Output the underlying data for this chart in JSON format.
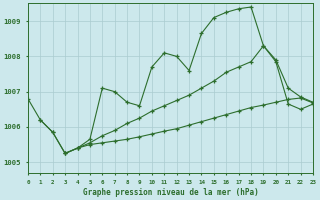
{
  "xlabel": "Graphe pression niveau de la mer (hPa)",
  "background_color": "#cce8ec",
  "grid_color": "#aaccd0",
  "line_color": "#2d6e2d",
  "x_min": 0,
  "x_max": 23,
  "y_min": 1004.7,
  "y_max": 1009.5,
  "yticks": [
    1005,
    1006,
    1007,
    1008,
    1009
  ],
  "xticks": [
    0,
    1,
    2,
    3,
    4,
    5,
    6,
    7,
    8,
    9,
    10,
    11,
    12,
    13,
    14,
    15,
    16,
    17,
    18,
    19,
    20,
    21,
    22,
    23
  ],
  "series1_x": [
    0,
    1,
    2,
    3,
    4,
    5,
    6,
    7,
    8,
    9,
    10,
    11,
    12,
    13,
    14,
    15,
    16,
    17,
    18,
    19,
    20,
    21,
    22,
    23
  ],
  "series1_y": [
    1006.8,
    1006.2,
    1005.85,
    1005.25,
    1005.4,
    1005.65,
    1007.1,
    1007.0,
    1006.7,
    1006.6,
    1007.7,
    1008.1,
    1008.0,
    1007.6,
    1008.65,
    1009.1,
    1009.25,
    1009.35,
    1009.4,
    1008.3,
    1007.9,
    1007.1,
    1006.85,
    1006.7
  ],
  "series2_x": [
    1,
    2,
    3,
    4,
    5,
    6,
    7,
    8,
    9,
    10,
    11,
    12,
    13,
    14,
    15,
    16,
    17,
    18,
    19,
    20,
    21,
    22,
    23
  ],
  "series2_y": [
    1006.2,
    1005.85,
    1005.25,
    1005.4,
    1005.55,
    1005.75,
    1005.9,
    1006.1,
    1006.25,
    1006.45,
    1006.6,
    1006.75,
    1006.9,
    1007.1,
    1007.3,
    1007.55,
    1007.7,
    1007.85,
    1008.3,
    1007.85,
    1006.65,
    1006.5,
    1006.65
  ],
  "series3_x": [
    3,
    4,
    5,
    6,
    7,
    8,
    9,
    10,
    11,
    12,
    13,
    14,
    15,
    16,
    17,
    18,
    19,
    20,
    21,
    22,
    23
  ],
  "series3_y": [
    1005.25,
    1005.4,
    1005.5,
    1005.55,
    1005.6,
    1005.65,
    1005.72,
    1005.8,
    1005.88,
    1005.95,
    1006.05,
    1006.15,
    1006.25,
    1006.35,
    1006.45,
    1006.55,
    1006.62,
    1006.7,
    1006.78,
    1006.82,
    1006.68
  ]
}
